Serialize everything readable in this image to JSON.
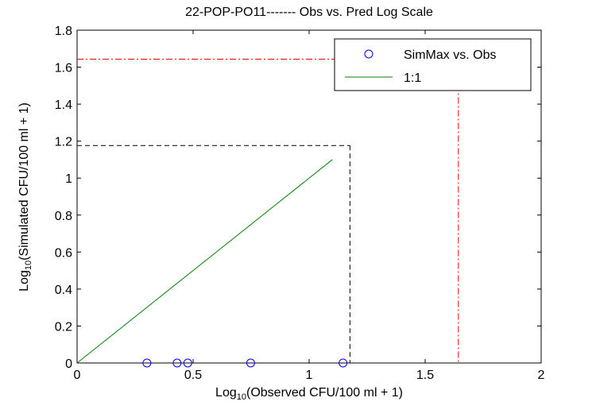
{
  "chart_data": {
    "type": "scatter",
    "title": "22-POP-PO11------- Obs vs. Pred Log Scale",
    "xlabel": {
      "prefix": "Log",
      "sub": "10",
      "rest": "(Observed CFU/100 ml + 1)"
    },
    "ylabel": {
      "prefix": "Log",
      "sub": "10",
      "rest": "(Simulated CFU/100 ml + 1)"
    },
    "xlim": [
      0,
      2
    ],
    "ylim": [
      0,
      1.8
    ],
    "xticks": [
      0,
      0.5,
      1,
      1.5,
      2
    ],
    "xtick_labels": [
      "0",
      "0.5",
      "1",
      "1.5",
      "2"
    ],
    "yticks": [
      0,
      0.2,
      0.4,
      0.6,
      0.8,
      1,
      1.2,
      1.4,
      1.6,
      1.8
    ],
    "ytick_labels": [
      "0",
      "0.2",
      "0.4",
      "0.6",
      "0.8",
      "1",
      "1.2",
      "1.4",
      "1.6",
      "1.8"
    ],
    "grid": false,
    "legend_position": "top-right",
    "series": [
      {
        "name": "SimMax vs. Obs",
        "kind": "scatter",
        "marker": "open-circle",
        "color": "#0000ff",
        "points": [
          [
            0.301,
            0
          ],
          [
            0.431,
            0
          ],
          [
            0.477,
            0
          ],
          [
            0.748,
            0
          ],
          [
            1.146,
            0
          ]
        ]
      },
      {
        "name": "1:1",
        "kind": "line",
        "color": "#008000",
        "points": [
          [
            0,
            0
          ],
          [
            1.1,
            1.1
          ]
        ]
      }
    ],
    "reference_lines": [
      {
        "style": "dashed",
        "color": "#000000",
        "x": 1.176,
        "y": 1.176
      },
      {
        "style": "dash-dot",
        "color": "#ff0000",
        "x": 1.643,
        "y": 1.643
      }
    ]
  }
}
